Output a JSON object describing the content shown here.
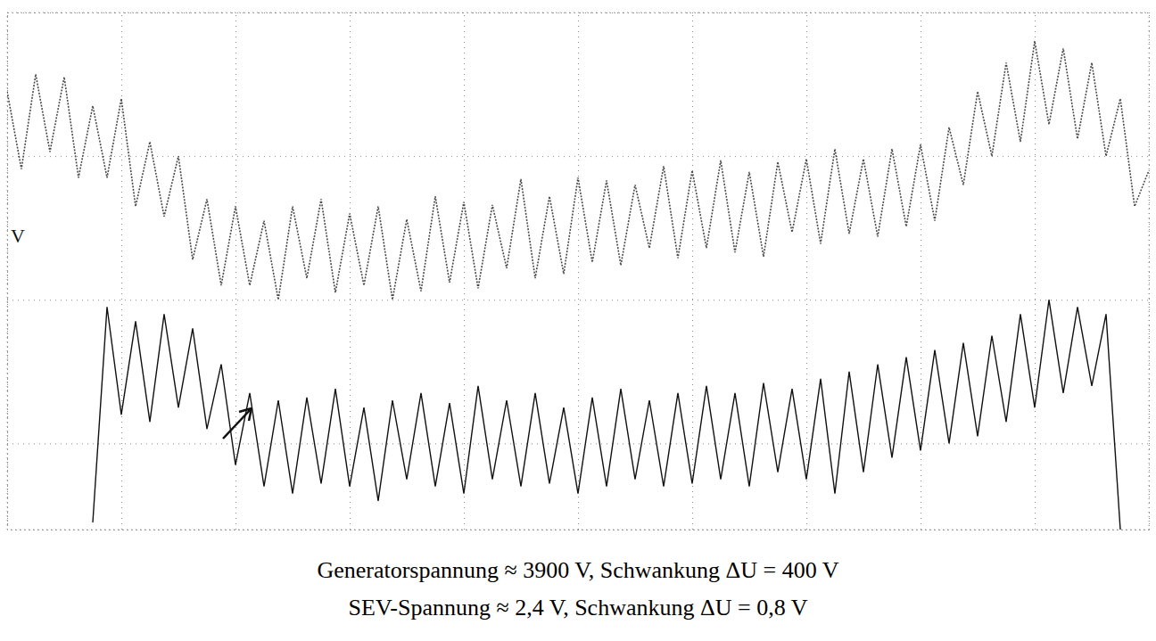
{
  "chart_data": {
    "type": "line",
    "annotations": [
      "V",
      "Generatorspannung ≈ 3900 V, Schwankung ΔU = 400 V",
      "SEV-Spannung ≈ 2,4 V, Schwankung ΔU = 0,8 V"
    ],
    "x": [
      0,
      0.125,
      0.25,
      0.375,
      0.5,
      0.625,
      0.75,
      0.875,
      1,
      1.125,
      1.25,
      1.375,
      1.5,
      1.625,
      1.75,
      1.875,
      2,
      2.125,
      2.25,
      2.375,
      2.5,
      2.625,
      2.75,
      2.875,
      3,
      3.125,
      3.25,
      3.375,
      3.5,
      3.625,
      3.75,
      3.875,
      4,
      4.125,
      4.25,
      4.375,
      4.5,
      4.625,
      4.75,
      4.875,
      5,
      5.125,
      5.25,
      5.375,
      5.5,
      5.625,
      5.75,
      5.875,
      6,
      6.125,
      6.25,
      6.375,
      6.5,
      6.625,
      6.75,
      6.875,
      7,
      7.125,
      7.25,
      7.375,
      7.5,
      7.625,
      7.75,
      7.875,
      8,
      8.125,
      8.25,
      8.375,
      8.5,
      8.625,
      8.75,
      8.875,
      9,
      9.125,
      9.25,
      9.375,
      9.5,
      9.625,
      9.75,
      9.875,
      10
    ],
    "series": [
      {
        "color": "#4a4a4a",
        "line_style": "dotted",
        "values": [
          2.45,
          1.91,
          2.57,
          2.03,
          2.55,
          1.85,
          2.35,
          1.85,
          2.4,
          1.65,
          2.1,
          1.58,
          2.0,
          1.28,
          1.7,
          1.1,
          1.65,
          1.1,
          1.55,
          1.0,
          1.65,
          1.15,
          1.7,
          1.05,
          1.6,
          1.1,
          1.65,
          1.0,
          1.56,
          1.06,
          1.72,
          1.12,
          1.68,
          1.08,
          1.66,
          1.22,
          1.84,
          1.15,
          1.72,
          1.18,
          1.85,
          1.26,
          1.83,
          1.24,
          1.8,
          1.36,
          1.93,
          1.29,
          1.9,
          1.36,
          1.97,
          1.33,
          1.89,
          1.3,
          1.96,
          1.47,
          1.98,
          1.39,
          2.05,
          1.46,
          1.98,
          1.44,
          2.05,
          1.51,
          2.08,
          1.55,
          2.2,
          1.8,
          2.45,
          2.0,
          2.65,
          2.1,
          2.8,
          2.22,
          2.75,
          2.12,
          2.65,
          2.0,
          2.4,
          1.65,
          1.9
        ]
      },
      {
        "color": "#111111",
        "line_style": "solid",
        "values": [
          null,
          null,
          null,
          null,
          null,
          null,
          -0.55,
          0.95,
          0.2,
          0.85,
          0.15,
          0.9,
          0.25,
          0.8,
          0.1,
          0.55,
          -0.15,
          0.35,
          -0.3,
          0.3,
          -0.35,
          0.32,
          -0.28,
          0.38,
          -0.3,
          0.25,
          -0.4,
          0.3,
          -0.25,
          0.35,
          -0.3,
          0.28,
          -0.35,
          0.4,
          -0.25,
          0.3,
          -0.3,
          0.35,
          -0.28,
          0.25,
          -0.35,
          0.32,
          -0.3,
          0.38,
          -0.25,
          0.3,
          -0.3,
          0.35,
          -0.28,
          0.4,
          -0.25,
          0.35,
          -0.3,
          0.42,
          -0.2,
          0.38,
          -0.25,
          0.45,
          -0.35,
          0.5,
          -0.2,
          0.55,
          -0.1,
          0.6,
          -0.05,
          0.65,
          0.0,
          0.7,
          0.05,
          0.75,
          0.15,
          0.9,
          0.25,
          1.0,
          0.35,
          0.95,
          0.4,
          0.9,
          -0.6,
          null,
          null
        ]
      }
    ],
    "xlim": [
      0,
      10
    ],
    "xticks": [
      0,
      1,
      2,
      3,
      4,
      5,
      6,
      7,
      8,
      9,
      10
    ],
    "ylim": [
      -0.6,
      3
    ],
    "yticks": [
      0,
      1,
      2,
      3
    ],
    "grid": true,
    "tick_labels": false
  }
}
